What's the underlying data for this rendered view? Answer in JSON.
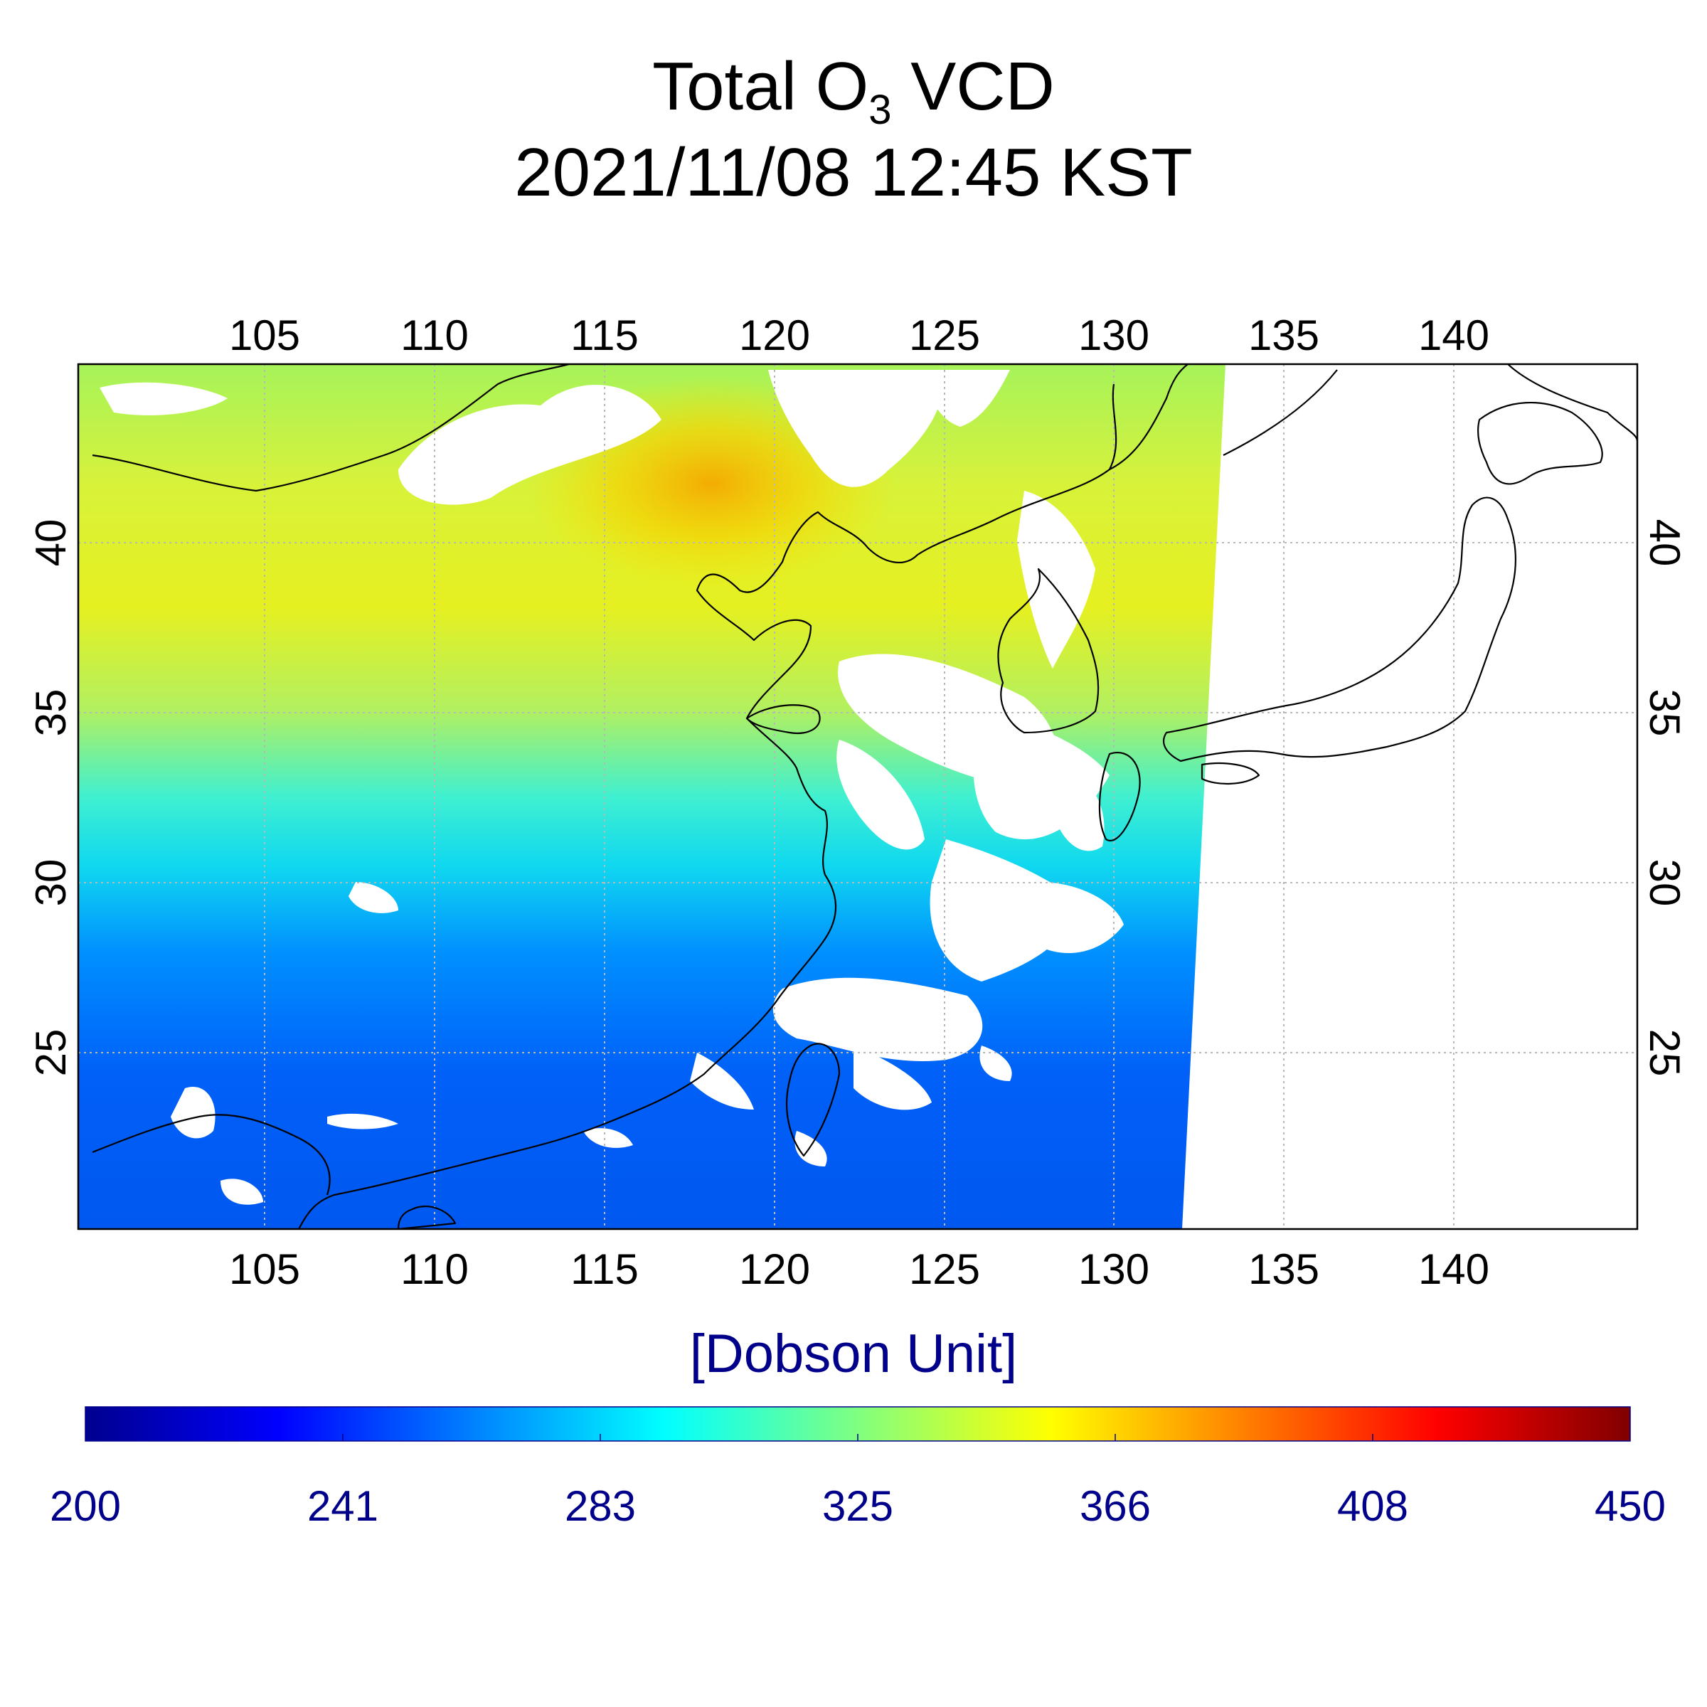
{
  "title": {
    "main": "Total O",
    "subscript": "3",
    "suffix": " VCD",
    "datetime": "2021/11/08 12:45 KST"
  },
  "map": {
    "lon_ticks": [
      "105",
      "110",
      "115",
      "120",
      "125",
      "130",
      "135",
      "140"
    ],
    "lat_ticks": [
      "25",
      "30",
      "35",
      "40"
    ],
    "lon_range": [
      99.5,
      145.5
    ],
    "lat_range": [
      20,
      45.5
    ],
    "swath_east_edge": {
      "north_lon": 133.8,
      "south_lon": 132.5
    },
    "colormap": "jet",
    "grid": true
  },
  "colorbar": {
    "unit": "[Dobson Unit]",
    "labels": [
      "200",
      "241",
      "283",
      "325",
      "366",
      "408",
      "450"
    ],
    "range": [
      200,
      450
    ],
    "colors": [
      "#00008f",
      "#0000ff",
      "#0080ff",
      "#00ffff",
      "#80ff80",
      "#ffff00",
      "#ff8000",
      "#ff0000",
      "#800000"
    ]
  }
}
